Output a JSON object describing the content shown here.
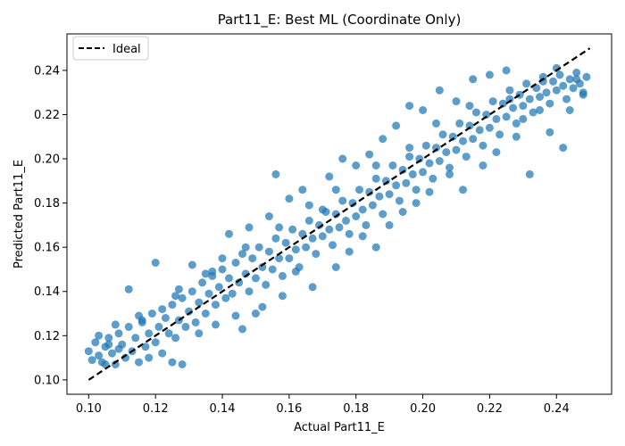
{
  "chart_data": {
    "type": "scatter",
    "title": "Part11_E: Best ML (Coordinate Only)",
    "xlabel": "Actual Part11_E",
    "ylabel": "Predicted Part11_E",
    "xlim": [
      0.0935,
      0.2565
    ],
    "ylim": [
      0.0935,
      0.2565
    ],
    "xticks": [
      "0.10",
      "0.12",
      "0.14",
      "0.16",
      "0.18",
      "0.20",
      "0.22",
      "0.24"
    ],
    "yticks": [
      "0.10",
      "0.12",
      "0.14",
      "0.16",
      "0.18",
      "0.20",
      "0.22",
      "0.24"
    ],
    "grid": false,
    "legend_position": "top-left",
    "legend": [
      {
        "label": "Ideal",
        "style": "dashed",
        "color": "#000000"
      }
    ],
    "ideal_line": {
      "x": [
        0.1,
        0.25
      ],
      "y": [
        0.1,
        0.25
      ]
    },
    "series": [
      {
        "color": "#1f77b4",
        "points": [
          [
            0.1,
            0.113
          ],
          [
            0.101,
            0.109
          ],
          [
            0.102,
            0.117
          ],
          [
            0.103,
            0.111
          ],
          [
            0.104,
            0.108
          ],
          [
            0.105,
            0.115
          ],
          [
            0.106,
            0.119
          ],
          [
            0.107,
            0.112
          ],
          [
            0.108,
            0.107
          ],
          [
            0.109,
            0.121
          ],
          [
            0.11,
            0.116
          ],
          [
            0.111,
            0.11
          ],
          [
            0.112,
            0.124
          ],
          [
            0.113,
            0.113
          ],
          [
            0.114,
            0.119
          ],
          [
            0.115,
            0.108
          ],
          [
            0.116,
            0.126
          ],
          [
            0.117,
            0.115
          ],
          [
            0.118,
            0.121
          ],
          [
            0.119,
            0.13
          ],
          [
            0.12,
            0.117
          ],
          [
            0.121,
            0.124
          ],
          [
            0.122,
            0.112
          ],
          [
            0.123,
            0.128
          ],
          [
            0.124,
            0.121
          ],
          [
            0.125,
            0.134
          ],
          [
            0.126,
            0.119
          ],
          [
            0.127,
            0.127
          ],
          [
            0.128,
            0.137
          ],
          [
            0.129,
            0.124
          ],
          [
            0.13,
            0.131
          ],
          [
            0.131,
            0.14
          ],
          [
            0.132,
            0.126
          ],
          [
            0.133,
            0.135
          ],
          [
            0.134,
            0.144
          ],
          [
            0.135,
            0.13
          ],
          [
            0.136,
            0.139
          ],
          [
            0.137,
            0.147
          ],
          [
            0.138,
            0.134
          ],
          [
            0.139,
            0.142
          ],
          [
            0.14,
            0.15
          ],
          [
            0.141,
            0.137
          ],
          [
            0.142,
            0.146
          ],
          [
            0.143,
            0.139
          ],
          [
            0.144,
            0.153
          ],
          [
            0.145,
            0.144
          ],
          [
            0.146,
            0.157
          ],
          [
            0.147,
            0.148
          ],
          [
            0.148,
            0.14
          ],
          [
            0.149,
            0.155
          ],
          [
            0.15,
            0.146
          ],
          [
            0.151,
            0.16
          ],
          [
            0.152,
            0.151
          ],
          [
            0.153,
            0.143
          ],
          [
            0.154,
            0.158
          ],
          [
            0.155,
            0.15
          ],
          [
            0.156,
            0.164
          ],
          [
            0.157,
            0.155
          ],
          [
            0.158,
            0.147
          ],
          [
            0.159,
            0.162
          ],
          [
            0.16,
            0.155
          ],
          [
            0.161,
            0.168
          ],
          [
            0.162,
            0.159
          ],
          [
            0.163,
            0.151
          ],
          [
            0.164,
            0.166
          ],
          [
            0.165,
            0.16
          ],
          [
            0.166,
            0.172
          ],
          [
            0.167,
            0.164
          ],
          [
            0.168,
            0.157
          ],
          [
            0.169,
            0.17
          ],
          [
            0.17,
            0.165
          ],
          [
            0.171,
            0.176
          ],
          [
            0.172,
            0.168
          ],
          [
            0.173,
            0.161
          ],
          [
            0.174,
            0.175
          ],
          [
            0.175,
            0.169
          ],
          [
            0.176,
            0.181
          ],
          [
            0.177,
            0.172
          ],
          [
            0.178,
            0.166
          ],
          [
            0.179,
            0.18
          ],
          [
            0.18,
            0.174
          ],
          [
            0.181,
            0.186
          ],
          [
            0.182,
            0.177
          ],
          [
            0.183,
            0.17
          ],
          [
            0.184,
            0.185
          ],
          [
            0.185,
            0.179
          ],
          [
            0.186,
            0.191
          ],
          [
            0.187,
            0.183
          ],
          [
            0.188,
            0.175
          ],
          [
            0.189,
            0.19
          ],
          [
            0.19,
            0.184
          ],
          [
            0.191,
            0.197
          ],
          [
            0.192,
            0.188
          ],
          [
            0.193,
            0.181
          ],
          [
            0.194,
            0.195
          ],
          [
            0.195,
            0.189
          ],
          [
            0.196,
            0.201
          ],
          [
            0.197,
            0.193
          ],
          [
            0.198,
            0.186
          ],
          [
            0.199,
            0.2
          ],
          [
            0.2,
            0.194
          ],
          [
            0.201,
            0.206
          ],
          [
            0.202,
            0.198
          ],
          [
            0.203,
            0.191
          ],
          [
            0.204,
            0.205
          ],
          [
            0.205,
            0.199
          ],
          [
            0.206,
            0.211
          ],
          [
            0.207,
            0.203
          ],
          [
            0.208,
            0.196
          ],
          [
            0.209,
            0.21
          ],
          [
            0.21,
            0.204
          ],
          [
            0.211,
            0.216
          ],
          [
            0.212,
            0.208
          ],
          [
            0.213,
            0.201
          ],
          [
            0.214,
            0.215
          ],
          [
            0.215,
            0.209
          ],
          [
            0.216,
            0.221
          ],
          [
            0.217,
            0.213
          ],
          [
            0.218,
            0.206
          ],
          [
            0.219,
            0.22
          ],
          [
            0.22,
            0.214
          ],
          [
            0.221,
            0.226
          ],
          [
            0.222,
            0.218
          ],
          [
            0.223,
            0.211
          ],
          [
            0.224,
            0.225
          ],
          [
            0.225,
            0.219
          ],
          [
            0.226,
            0.231
          ],
          [
            0.227,
            0.223
          ],
          [
            0.228,
            0.216
          ],
          [
            0.229,
            0.229
          ],
          [
            0.23,
            0.224
          ],
          [
            0.231,
            0.234
          ],
          [
            0.232,
            0.227
          ],
          [
            0.233,
            0.221
          ],
          [
            0.234,
            0.232
          ],
          [
            0.235,
            0.228
          ],
          [
            0.236,
            0.237
          ],
          [
            0.237,
            0.23
          ],
          [
            0.238,
            0.225
          ],
          [
            0.239,
            0.235
          ],
          [
            0.24,
            0.231
          ],
          [
            0.241,
            0.238
          ],
          [
            0.242,
            0.233
          ],
          [
            0.243,
            0.227
          ],
          [
            0.244,
            0.236
          ],
          [
            0.245,
            0.232
          ],
          [
            0.246,
            0.239
          ],
          [
            0.247,
            0.234
          ],
          [
            0.248,
            0.23
          ],
          [
            0.249,
            0.237
          ],
          [
            0.105,
            0.107
          ],
          [
            0.108,
            0.125
          ],
          [
            0.112,
            0.141
          ],
          [
            0.115,
            0.129
          ],
          [
            0.118,
            0.11
          ],
          [
            0.12,
            0.153
          ],
          [
            0.122,
            0.132
          ],
          [
            0.125,
            0.108
          ],
          [
            0.127,
            0.141
          ],
          [
            0.128,
            0.107
          ],
          [
            0.131,
            0.152
          ],
          [
            0.133,
            0.121
          ],
          [
            0.135,
            0.148
          ],
          [
            0.138,
            0.125
          ],
          [
            0.14,
            0.155
          ],
          [
            0.142,
            0.166
          ],
          [
            0.144,
            0.129
          ],
          [
            0.146,
            0.123
          ],
          [
            0.148,
            0.169
          ],
          [
            0.15,
            0.13
          ],
          [
            0.152,
            0.133
          ],
          [
            0.154,
            0.174
          ],
          [
            0.156,
            0.193
          ],
          [
            0.158,
            0.138
          ],
          [
            0.16,
            0.182
          ],
          [
            0.162,
            0.149
          ],
          [
            0.164,
            0.186
          ],
          [
            0.167,
            0.142
          ],
          [
            0.17,
            0.177
          ],
          [
            0.172,
            0.192
          ],
          [
            0.174,
            0.151
          ],
          [
            0.176,
            0.2
          ],
          [
            0.178,
            0.158
          ],
          [
            0.18,
            0.197
          ],
          [
            0.182,
            0.165
          ],
          [
            0.184,
            0.202
          ],
          [
            0.186,
            0.16
          ],
          [
            0.188,
            0.209
          ],
          [
            0.19,
            0.17
          ],
          [
            0.192,
            0.215
          ],
          [
            0.194,
            0.176
          ],
          [
            0.196,
            0.224
          ],
          [
            0.198,
            0.18
          ],
          [
            0.2,
            0.222
          ],
          [
            0.202,
            0.185
          ],
          [
            0.205,
            0.231
          ],
          [
            0.208,
            0.193
          ],
          [
            0.21,
            0.226
          ],
          [
            0.212,
            0.186
          ],
          [
            0.215,
            0.236
          ],
          [
            0.218,
            0.197
          ],
          [
            0.22,
            0.238
          ],
          [
            0.222,
            0.203
          ],
          [
            0.225,
            0.24
          ],
          [
            0.228,
            0.21
          ],
          [
            0.23,
            0.218
          ],
          [
            0.232,
            0.193
          ],
          [
            0.235,
            0.222
          ],
          [
            0.238,
            0.212
          ],
          [
            0.24,
            0.241
          ],
          [
            0.242,
            0.205
          ],
          [
            0.244,
            0.222
          ],
          [
            0.246,
            0.236
          ],
          [
            0.248,
            0.229
          ],
          [
            0.236,
            0.235
          ],
          [
            0.226,
            0.227
          ],
          [
            0.214,
            0.224
          ],
          [
            0.204,
            0.216
          ],
          [
            0.196,
            0.205
          ],
          [
            0.186,
            0.197
          ],
          [
            0.174,
            0.186
          ],
          [
            0.166,
            0.179
          ],
          [
            0.157,
            0.169
          ],
          [
            0.147,
            0.16
          ],
          [
            0.137,
            0.149
          ],
          [
            0.126,
            0.138
          ],
          [
            0.116,
            0.127
          ],
          [
            0.106,
            0.116
          ],
          [
            0.103,
            0.12
          ],
          [
            0.109,
            0.114
          ]
        ]
      }
    ]
  }
}
